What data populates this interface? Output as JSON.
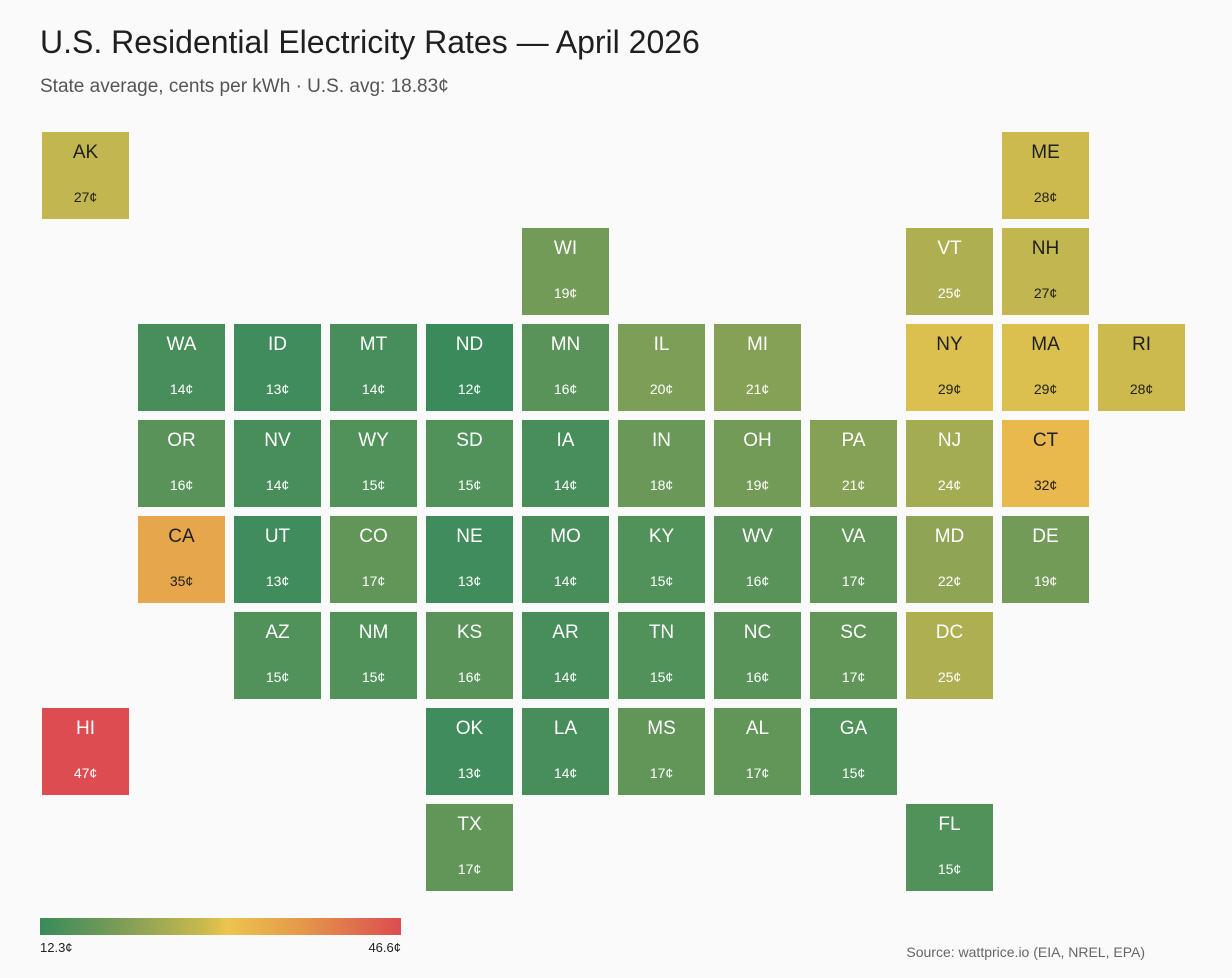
{
  "header": {
    "title": "U.S. Residential Electricity Rates — April 2026",
    "subtitle": "State average, cents per kWh · U.S. avg: 18.83¢"
  },
  "legend": {
    "min_label": "12.3¢",
    "max_label": "46.6¢",
    "colors": [
      "#3a8a5c",
      "#ecc44f",
      "#dc4c51"
    ]
  },
  "source": "Source: wattprice.io (EIA, NREL, EPA)",
  "chart_data": {
    "type": "heatmap",
    "title": "U.S. Residential Electricity Rates — April 2026",
    "unit": "cents per kWh",
    "scale": {
      "min": 12.3,
      "max": 46.6
    },
    "states": [
      {
        "abbr": "AK",
        "label": "27¢",
        "value": 27,
        "row": 0,
        "col": 0
      },
      {
        "abbr": "ME",
        "label": "28¢",
        "value": 28,
        "row": 0,
        "col": 10
      },
      {
        "abbr": "WI",
        "label": "19¢",
        "value": 19,
        "row": 1,
        "col": 5
      },
      {
        "abbr": "VT",
        "label": "25¢",
        "value": 25,
        "row": 1,
        "col": 9
      },
      {
        "abbr": "NH",
        "label": "27¢",
        "value": 27,
        "row": 1,
        "col": 10
      },
      {
        "abbr": "WA",
        "label": "14¢",
        "value": 14,
        "row": 2,
        "col": 1
      },
      {
        "abbr": "ID",
        "label": "13¢",
        "value": 13,
        "row": 2,
        "col": 2
      },
      {
        "abbr": "MT",
        "label": "14¢",
        "value": 14,
        "row": 2,
        "col": 3
      },
      {
        "abbr": "ND",
        "label": "12¢",
        "value": 12,
        "row": 2,
        "col": 4
      },
      {
        "abbr": "MN",
        "label": "16¢",
        "value": 16,
        "row": 2,
        "col": 5
      },
      {
        "abbr": "IL",
        "label": "20¢",
        "value": 20,
        "row": 2,
        "col": 6
      },
      {
        "abbr": "MI",
        "label": "21¢",
        "value": 21,
        "row": 2,
        "col": 7
      },
      {
        "abbr": "NY",
        "label": "29¢",
        "value": 29,
        "row": 2,
        "col": 9
      },
      {
        "abbr": "MA",
        "label": "29¢",
        "value": 29,
        "row": 2,
        "col": 10
      },
      {
        "abbr": "RI",
        "label": "28¢",
        "value": 28,
        "row": 2,
        "col": 11
      },
      {
        "abbr": "OR",
        "label": "16¢",
        "value": 16,
        "row": 3,
        "col": 1
      },
      {
        "abbr": "NV",
        "label": "14¢",
        "value": 14,
        "row": 3,
        "col": 2
      },
      {
        "abbr": "WY",
        "label": "15¢",
        "value": 15,
        "row": 3,
        "col": 3
      },
      {
        "abbr": "SD",
        "label": "15¢",
        "value": 15,
        "row": 3,
        "col": 4
      },
      {
        "abbr": "IA",
        "label": "14¢",
        "value": 14,
        "row": 3,
        "col": 5
      },
      {
        "abbr": "IN",
        "label": "18¢",
        "value": 18,
        "row": 3,
        "col": 6
      },
      {
        "abbr": "OH",
        "label": "19¢",
        "value": 19,
        "row": 3,
        "col": 7
      },
      {
        "abbr": "PA",
        "label": "21¢",
        "value": 21,
        "row": 3,
        "col": 8
      },
      {
        "abbr": "NJ",
        "label": "24¢",
        "value": 24,
        "row": 3,
        "col": 9
      },
      {
        "abbr": "CT",
        "label": "32¢",
        "value": 32,
        "row": 3,
        "col": 10
      },
      {
        "abbr": "CA",
        "label": "35¢",
        "value": 35,
        "row": 4,
        "col": 1
      },
      {
        "abbr": "UT",
        "label": "13¢",
        "value": 13,
        "row": 4,
        "col": 2
      },
      {
        "abbr": "CO",
        "label": "17¢",
        "value": 17,
        "row": 4,
        "col": 3
      },
      {
        "abbr": "NE",
        "label": "13¢",
        "value": 13,
        "row": 4,
        "col": 4
      },
      {
        "abbr": "MO",
        "label": "14¢",
        "value": 14,
        "row": 4,
        "col": 5
      },
      {
        "abbr": "KY",
        "label": "15¢",
        "value": 15,
        "row": 4,
        "col": 6
      },
      {
        "abbr": "WV",
        "label": "16¢",
        "value": 16,
        "row": 4,
        "col": 7
      },
      {
        "abbr": "VA",
        "label": "17¢",
        "value": 17,
        "row": 4,
        "col": 8
      },
      {
        "abbr": "MD",
        "label": "22¢",
        "value": 22,
        "row": 4,
        "col": 9
      },
      {
        "abbr": "DE",
        "label": "19¢",
        "value": 19,
        "row": 4,
        "col": 10
      },
      {
        "abbr": "AZ",
        "label": "15¢",
        "value": 15,
        "row": 5,
        "col": 2
      },
      {
        "abbr": "NM",
        "label": "15¢",
        "value": 15,
        "row": 5,
        "col": 3
      },
      {
        "abbr": "KS",
        "label": "16¢",
        "value": 16,
        "row": 5,
        "col": 4
      },
      {
        "abbr": "AR",
        "label": "14¢",
        "value": 14,
        "row": 5,
        "col": 5
      },
      {
        "abbr": "TN",
        "label": "15¢",
        "value": 15,
        "row": 5,
        "col": 6
      },
      {
        "abbr": "NC",
        "label": "16¢",
        "value": 16,
        "row": 5,
        "col": 7
      },
      {
        "abbr": "SC",
        "label": "17¢",
        "value": 17,
        "row": 5,
        "col": 8
      },
      {
        "abbr": "DC",
        "label": "25¢",
        "value": 25,
        "row": 5,
        "col": 9
      },
      {
        "abbr": "HI",
        "label": "47¢",
        "value": 47,
        "row": 6,
        "col": 0
      },
      {
        "abbr": "OK",
        "label": "13¢",
        "value": 13,
        "row": 6,
        "col": 4
      },
      {
        "abbr": "LA",
        "label": "14¢",
        "value": 14,
        "row": 6,
        "col": 5
      },
      {
        "abbr": "MS",
        "label": "17¢",
        "value": 17,
        "row": 6,
        "col": 6
      },
      {
        "abbr": "AL",
        "label": "17¢",
        "value": 17,
        "row": 6,
        "col": 7
      },
      {
        "abbr": "GA",
        "label": "15¢",
        "value": 15,
        "row": 6,
        "col": 8
      },
      {
        "abbr": "TX",
        "label": "17¢",
        "value": 17,
        "row": 7,
        "col": 4
      },
      {
        "abbr": "FL",
        "label": "15¢",
        "value": 15,
        "row": 7,
        "col": 9
      }
    ]
  }
}
